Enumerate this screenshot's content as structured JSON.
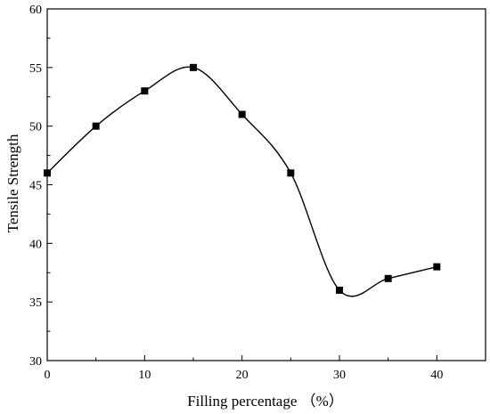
{
  "chart_data": {
    "type": "line",
    "title": "",
    "xlabel": "Filling percentage （%）",
    "ylabel": "Tensile Strength",
    "x": [
      0,
      5,
      10,
      15,
      20,
      25,
      30,
      35,
      40
    ],
    "series": [
      {
        "values": [
          46,
          50,
          53,
          55,
          51,
          46,
          36,
          37,
          38
        ]
      }
    ],
    "xlim": [
      0,
      45
    ],
    "ylim": [
      30,
      60
    ],
    "xticks": [
      0,
      10,
      20,
      30,
      40
    ],
    "yticks": [
      30,
      35,
      40,
      45,
      50,
      55,
      60
    ],
    "grid": false,
    "marker": "square",
    "smooth": true,
    "colors": {
      "line": "#000000",
      "marker": "#000000",
      "axis": "#000000"
    }
  }
}
